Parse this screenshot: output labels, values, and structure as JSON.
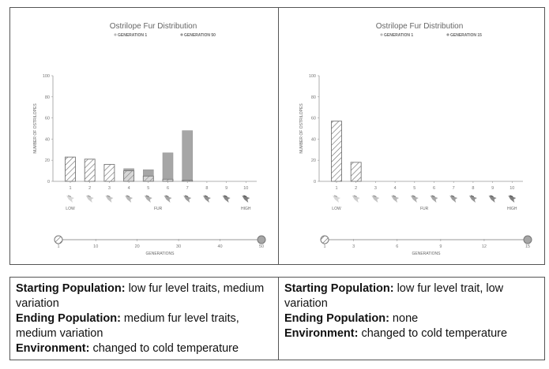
{
  "chart_data": [
    {
      "type": "bar",
      "title": "Ostrilope Fur Distribution",
      "legend": [
        "GENERATION 1",
        "GENERATION 50"
      ],
      "legend_placement": "top-center",
      "categories": [
        "1",
        "2",
        "3",
        "4",
        "5",
        "6",
        "7",
        "8",
        "9",
        "10"
      ],
      "series": [
        {
          "name": "GENERATION 1",
          "style": "hatched",
          "values": [
            23,
            21,
            16,
            10,
            5,
            2,
            1,
            0,
            0,
            0
          ]
        },
        {
          "name": "GENERATION 50",
          "style": "solid-gray",
          "values": [
            0,
            0,
            0,
            12,
            11,
            27,
            48,
            0,
            0,
            0
          ]
        }
      ],
      "ylabel": "NUMBER OF OSTRILOPES",
      "xlabel": "FUR",
      "x_low_label": "LOW",
      "x_high_label": "HIGH",
      "ylim": [
        0,
        100
      ],
      "yticks": [
        0,
        20,
        40,
        60,
        80,
        100
      ],
      "generations_slider": {
        "label": "GENERATIONS",
        "ticks": [
          "1",
          "10",
          "20",
          "30",
          "40",
          "50"
        ],
        "start": 1,
        "end": 50
      }
    },
    {
      "type": "bar",
      "title": "Ostrilope Fur Distribution",
      "legend": [
        "GENERATION 1",
        "GENERATION 15"
      ],
      "legend_placement": "top-center",
      "categories": [
        "1",
        "2",
        "3",
        "4",
        "5",
        "6",
        "7",
        "8",
        "9",
        "10"
      ],
      "series": [
        {
          "name": "GENERATION 1",
          "style": "hatched",
          "values": [
            57,
            18,
            0,
            0,
            0,
            0,
            0,
            0,
            0,
            0
          ]
        },
        {
          "name": "GENERATION 15",
          "style": "solid-gray",
          "values": [
            0,
            0,
            0,
            0,
            0,
            0,
            0,
            0,
            0,
            0
          ]
        }
      ],
      "ylabel": "NUMBER OF OSTRILOPES",
      "xlabel": "FUR",
      "x_low_label": "LOW",
      "x_high_label": "HIGH",
      "ylim": [
        0,
        100
      ],
      "yticks": [
        0,
        20,
        40,
        60,
        80,
        100
      ],
      "generations_slider": {
        "label": "GENERATIONS",
        "ticks": [
          "1",
          "3",
          "6",
          "9",
          "12",
          "15"
        ],
        "start": 1,
        "end": 15
      }
    }
  ],
  "descriptions": [
    {
      "starting_label": "Starting Population:",
      "starting_text": " low fur level traits, medium variation",
      "ending_label": "Ending Population:",
      "ending_text": " medium fur level traits, medium variation",
      "environment_label": "Environment:",
      "environment_text": " changed to cold temperature"
    },
    {
      "starting_label": "Starting Population:",
      "starting_text": " low fur level trait, low variation",
      "ending_label": "Ending Population:",
      "ending_text": " none",
      "environment_label": "Environment:",
      "environment_text": " changed to cold temperature"
    }
  ],
  "colors": {
    "hatch": "#666666",
    "solid": "#a6a6a6",
    "axis": "#999999",
    "text": "#666666"
  }
}
